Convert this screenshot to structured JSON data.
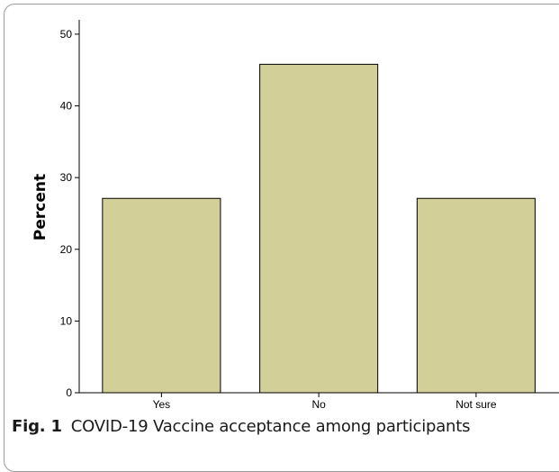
{
  "chart_data": {
    "type": "bar",
    "categories": [
      "Yes",
      "No",
      "Not sure"
    ],
    "values": [
      27.1,
      45.8,
      27.1
    ],
    "ylabel": "Percent",
    "xlabel": "",
    "ylim": [
      0,
      52
    ],
    "yticks": [
      0,
      10,
      20,
      30,
      40,
      50
    ],
    "grid": false,
    "bar_color": "#d3cf98",
    "bar_edge_color": "#000000"
  },
  "caption": {
    "label": "Fig. 1",
    "text": "COVID-19 Vaccine acceptance among participants"
  }
}
